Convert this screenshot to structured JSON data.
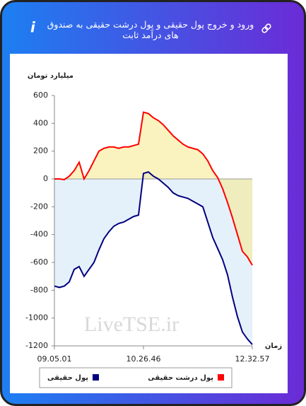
{
  "header": {
    "title": "ورود و خروج پول حقیقی و پول درشت حقیقی به صندوق های درآمد ثابت"
  },
  "chart_data": {
    "type": "area",
    "y_label": "میلیارد تومان",
    "x_label": "زمان",
    "watermark": "LiveTSE.ir",
    "categories": [
      "09.05.01",
      null,
      null,
      null,
      null,
      null,
      null,
      null,
      null,
      null,
      null,
      null,
      null,
      null,
      null,
      null,
      null,
      null,
      "10.26.46",
      null,
      null,
      null,
      null,
      null,
      null,
      null,
      null,
      null,
      null,
      null,
      null,
      null,
      null,
      null,
      null,
      null,
      null,
      null,
      null,
      null,
      "12.32.57"
    ],
    "series": [
      {
        "name": "پول درشت حقیقی",
        "color": "#ff0000",
        "fill": "#f7e98a",
        "values": [
          0,
          0,
          -5,
          20,
          60,
          120,
          0,
          60,
          130,
          200,
          220,
          230,
          230,
          220,
          230,
          230,
          240,
          250,
          480,
          470,
          440,
          420,
          390,
          350,
          310,
          280,
          250,
          230,
          220,
          210,
          180,
          130,
          60,
          10,
          -70,
          -170,
          -280,
          -400,
          -520,
          -560,
          -620
        ]
      },
      {
        "name": "پول حقیقی",
        "color": "#000080",
        "fill": "#cfe6f6",
        "values": [
          -770,
          -780,
          -770,
          -740,
          -650,
          -630,
          -700,
          -650,
          -600,
          -510,
          -430,
          -380,
          -340,
          -320,
          -310,
          -290,
          -270,
          -260,
          40,
          50,
          20,
          0,
          -30,
          -60,
          -100,
          -120,
          -130,
          -140,
          -160,
          -180,
          -200,
          -310,
          -420,
          -500,
          -580,
          -690,
          -850,
          -990,
          -1100,
          -1150,
          -1190
        ]
      }
    ],
    "ylim": [
      -1200,
      600
    ],
    "yticks": [
      {
        "value": -1200,
        "label": "-1200"
      },
      {
        "value": -1000,
        "label": "-1000"
      },
      -800,
      -600,
      -400,
      -200,
      0,
      200,
      400,
      600
    ]
  }
}
